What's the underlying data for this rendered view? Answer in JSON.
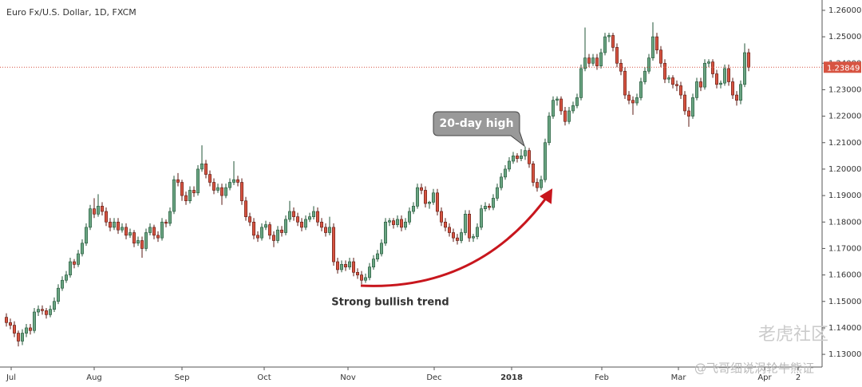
{
  "chart_data": {
    "type": "candlestick",
    "title": "Euro Fx/U.S. Dollar, 1D, FXCM",
    "up_color": "#6ba583",
    "down_color": "#d75442",
    "last_price": 1.23849,
    "last_price_color": "#d75442",
    "annotations": [
      "20-day high",
      "Strong bullish trend"
    ],
    "watermark": [
      "老虎社区",
      "@飞哥细说涡轮牛熊证"
    ],
    "xlim": [
      -1.6,
      204.4
    ],
    "xticks": [
      {
        "value": 1.2,
        "label": "Jul"
      },
      {
        "value": 22,
        "label": "Aug"
      },
      {
        "value": 44,
        "label": "Sep"
      },
      {
        "value": 64.6,
        "label": "Oct"
      },
      {
        "value": 85.6,
        "label": "Nov"
      },
      {
        "value": 107.2,
        "label": "Dec"
      },
      {
        "value": 126.6,
        "label": "2018"
      },
      {
        "value": 149.2,
        "label": "Feb"
      },
      {
        "value": 168.4,
        "label": "Mar"
      },
      {
        "value": 190,
        "label": "Apr"
      },
      {
        "value": 198.4,
        "label": "2"
      }
    ],
    "ylim": [
      1.1252,
      1.2639
    ],
    "yticks": [
      {
        "value": 1.26,
        "label": "1.26000"
      },
      {
        "value": 1.25,
        "label": "1.25000"
      },
      {
        "value": 1.24,
        "label": "1.24000"
      },
      {
        "value": 1.23,
        "label": "1.23000"
      },
      {
        "value": 1.22,
        "label": "1.22000"
      },
      {
        "value": 1.21,
        "label": "1.21000"
      },
      {
        "value": 1.2,
        "label": "1.20000"
      },
      {
        "value": 1.19,
        "label": "1.19000"
      },
      {
        "value": 1.18,
        "label": "1.18000"
      },
      {
        "value": 1.17,
        "label": "1.17000"
      },
      {
        "value": 1.16,
        "label": "1.16000"
      },
      {
        "value": 1.15,
        "label": "1.15000"
      },
      {
        "value": 1.14,
        "label": "1.14000"
      },
      {
        "value": 1.13,
        "label": "1.13000"
      }
    ],
    "ohlc": [
      [
        1.144,
        1.1455,
        1.1405,
        1.142
      ],
      [
        1.142,
        1.1435,
        1.1395,
        1.141
      ],
      [
        1.141,
        1.1425,
        1.1365,
        1.138
      ],
      [
        1.138,
        1.139,
        1.133,
        1.135
      ],
      [
        1.135,
        1.1395,
        1.1335,
        1.138
      ],
      [
        1.138,
        1.1415,
        1.1365,
        1.14
      ],
      [
        1.14,
        1.1415,
        1.1375,
        1.139
      ],
      [
        1.139,
        1.1475,
        1.138,
        1.146
      ],
      [
        1.146,
        1.1485,
        1.1445,
        1.147
      ],
      [
        1.147,
        1.1485,
        1.145,
        1.1465
      ],
      [
        1.1465,
        1.1475,
        1.1435,
        1.145
      ],
      [
        1.145,
        1.1485,
        1.144,
        1.147
      ],
      [
        1.147,
        1.1515,
        1.146,
        1.15
      ],
      [
        1.15,
        1.1565,
        1.149,
        1.155
      ],
      [
        1.155,
        1.1595,
        1.154,
        1.158
      ],
      [
        1.158,
        1.1615,
        1.157,
        1.16
      ],
      [
        1.16,
        1.1665,
        1.159,
        1.165
      ],
      [
        1.165,
        1.166,
        1.1625,
        1.164
      ],
      [
        1.164,
        1.1695,
        1.163,
        1.168
      ],
      [
        1.168,
        1.1735,
        1.167,
        1.172
      ],
      [
        1.172,
        1.1795,
        1.171,
        1.178
      ],
      [
        1.178,
        1.1865,
        1.177,
        1.185
      ],
      [
        1.185,
        1.189,
        1.1815,
        1.183
      ],
      [
        1.183,
        1.1905,
        1.182,
        1.186
      ],
      [
        1.186,
        1.1875,
        1.1825,
        1.184
      ],
      [
        1.184,
        1.1855,
        1.1785,
        1.18
      ],
      [
        1.18,
        1.1815,
        1.1765,
        1.178
      ],
      [
        1.178,
        1.1815,
        1.177,
        1.18
      ],
      [
        1.18,
        1.1815,
        1.1755,
        1.177
      ],
      [
        1.177,
        1.1795,
        1.176,
        1.178
      ],
      [
        1.178,
        1.1795,
        1.1735,
        1.175
      ],
      [
        1.175,
        1.1775,
        1.174,
        1.176
      ],
      [
        1.176,
        1.177,
        1.1705,
        1.172
      ],
      [
        1.172,
        1.1745,
        1.171,
        1.173
      ],
      [
        1.173,
        1.1745,
        1.1665,
        1.17
      ],
      [
        1.17,
        1.1775,
        1.169,
        1.176
      ],
      [
        1.176,
        1.1795,
        1.175,
        1.178
      ],
      [
        1.178,
        1.179,
        1.1735,
        1.175
      ],
      [
        1.175,
        1.1765,
        1.1725,
        1.174
      ],
      [
        1.174,
        1.1815,
        1.173,
        1.18
      ],
      [
        1.18,
        1.181,
        1.178,
        1.1795
      ],
      [
        1.1795,
        1.1855,
        1.1785,
        1.184
      ],
      [
        1.184,
        1.1975,
        1.183,
        1.196
      ],
      [
        1.196,
        1.1985,
        1.1935,
        1.195
      ],
      [
        1.195,
        1.196,
        1.188,
        1.19
      ],
      [
        1.19,
        1.1915,
        1.1865,
        1.188
      ],
      [
        1.188,
        1.1935,
        1.187,
        1.192
      ],
      [
        1.192,
        1.1935,
        1.1895,
        1.191
      ],
      [
        1.191,
        1.2015,
        1.19,
        1.2
      ],
      [
        1.2,
        1.209,
        1.199,
        1.202
      ],
      [
        1.202,
        1.2035,
        1.1965,
        1.198
      ],
      [
        1.198,
        1.1995,
        1.1935,
        1.195
      ],
      [
        1.195,
        1.1965,
        1.1905,
        1.192
      ],
      [
        1.192,
        1.1945,
        1.191,
        1.193
      ],
      [
        1.193,
        1.1945,
        1.1865,
        1.19
      ],
      [
        1.19,
        1.1945,
        1.189,
        1.193
      ],
      [
        1.193,
        1.1965,
        1.192,
        1.195
      ],
      [
        1.195,
        1.203,
        1.194,
        1.196
      ],
      [
        1.196,
        1.1975,
        1.1935,
        1.195
      ],
      [
        1.195,
        1.1965,
        1.1865,
        1.188
      ],
      [
        1.188,
        1.1895,
        1.1805,
        1.182
      ],
      [
        1.182,
        1.1835,
        1.1785,
        1.18
      ],
      [
        1.18,
        1.1815,
        1.1735,
        1.175
      ],
      [
        1.175,
        1.1765,
        1.1725,
        1.174
      ],
      [
        1.174,
        1.1795,
        1.173,
        1.178
      ],
      [
        1.178,
        1.1805,
        1.177,
        1.179
      ],
      [
        1.179,
        1.18,
        1.1735,
        1.175
      ],
      [
        1.175,
        1.1765,
        1.1705,
        1.173
      ],
      [
        1.173,
        1.1785,
        1.172,
        1.177
      ],
      [
        1.177,
        1.1785,
        1.1745,
        1.176
      ],
      [
        1.176,
        1.1825,
        1.175,
        1.181
      ],
      [
        1.181,
        1.188,
        1.18,
        1.184
      ],
      [
        1.184,
        1.1855,
        1.1805,
        1.182
      ],
      [
        1.182,
        1.1835,
        1.1785,
        1.18
      ],
      [
        1.18,
        1.1815,
        1.1765,
        1.178
      ],
      [
        1.178,
        1.1825,
        1.177,
        1.181
      ],
      [
        1.181,
        1.1835,
        1.18,
        1.182
      ],
      [
        1.182,
        1.186,
        1.181,
        1.184
      ],
      [
        1.184,
        1.1855,
        1.1785,
        1.18
      ],
      [
        1.18,
        1.1815,
        1.1765,
        1.178
      ],
      [
        1.178,
        1.1795,
        1.1745,
        1.176
      ],
      [
        1.176,
        1.182,
        1.175,
        1.178
      ],
      [
        1.178,
        1.1795,
        1.1635,
        1.165
      ],
      [
        1.165,
        1.1665,
        1.1605,
        1.162
      ],
      [
        1.162,
        1.1655,
        1.161,
        1.164
      ],
      [
        1.164,
        1.1655,
        1.1615,
        1.163
      ],
      [
        1.163,
        1.1665,
        1.162,
        1.165
      ],
      [
        1.165,
        1.1665,
        1.1595,
        1.161
      ],
      [
        1.161,
        1.1625,
        1.1585,
        1.16
      ],
      [
        1.16,
        1.1615,
        1.1565,
        1.158
      ],
      [
        1.158,
        1.1605,
        1.157,
        1.159
      ],
      [
        1.159,
        1.1645,
        1.158,
        1.163
      ],
      [
        1.163,
        1.1675,
        1.162,
        1.166
      ],
      [
        1.166,
        1.1695,
        1.165,
        1.168
      ],
      [
        1.168,
        1.1735,
        1.167,
        1.172
      ],
      [
        1.172,
        1.1815,
        1.171,
        1.18
      ],
      [
        1.18,
        1.1815,
        1.1785,
        1.1805
      ],
      [
        1.1805,
        1.1815,
        1.1775,
        1.179
      ],
      [
        1.179,
        1.1825,
        1.178,
        1.181
      ],
      [
        1.181,
        1.1825,
        1.1765,
        1.178
      ],
      [
        1.178,
        1.1815,
        1.177,
        1.18
      ],
      [
        1.18,
        1.1855,
        1.179,
        1.184
      ],
      [
        1.184,
        1.1875,
        1.183,
        1.186
      ],
      [
        1.186,
        1.1945,
        1.185,
        1.193
      ],
      [
        1.193,
        1.1945,
        1.1905,
        1.192
      ],
      [
        1.192,
        1.1935,
        1.1855,
        1.187
      ],
      [
        1.187,
        1.188,
        1.185,
        1.1875
      ],
      [
        1.1875,
        1.1925,
        1.1865,
        1.191
      ],
      [
        1.191,
        1.1925,
        1.1825,
        1.184
      ],
      [
        1.184,
        1.1855,
        1.1785,
        1.18
      ],
      [
        1.18,
        1.1815,
        1.1765,
        1.178
      ],
      [
        1.178,
        1.1795,
        1.1745,
        1.176
      ],
      [
        1.176,
        1.1775,
        1.1725,
        1.174
      ],
      [
        1.174,
        1.1755,
        1.1715,
        1.173
      ],
      [
        1.173,
        1.1775,
        1.172,
        1.176
      ],
      [
        1.176,
        1.1845,
        1.175,
        1.183
      ],
      [
        1.183,
        1.1845,
        1.1725,
        1.174
      ],
      [
        1.174,
        1.1755,
        1.1725,
        1.1745
      ],
      [
        1.1745,
        1.1795,
        1.1735,
        1.178
      ],
      [
        1.178,
        1.1865,
        1.177,
        1.185
      ],
      [
        1.185,
        1.1875,
        1.184,
        1.186
      ],
      [
        1.186,
        1.187,
        1.1845,
        1.1855
      ],
      [
        1.1855,
        1.1905,
        1.1845,
        1.189
      ],
      [
        1.189,
        1.1945,
        1.188,
        1.193
      ],
      [
        1.193,
        1.1985,
        1.192,
        1.197
      ],
      [
        1.197,
        1.2015,
        1.196,
        1.2
      ],
      [
        1.2,
        1.2045,
        1.199,
        1.203
      ],
      [
        1.203,
        1.2065,
        1.202,
        1.205
      ],
      [
        1.205,
        1.206,
        1.2025,
        1.204
      ],
      [
        1.204,
        1.2075,
        1.203,
        1.205
      ],
      [
        1.205,
        1.2085,
        1.2035,
        1.207
      ],
      [
        1.207,
        1.208,
        1.2005,
        1.202
      ],
      [
        1.202,
        1.203,
        1.1935,
        1.195
      ],
      [
        1.195,
        1.1965,
        1.1915,
        1.193
      ],
      [
        1.193,
        1.1975,
        1.192,
        1.196
      ],
      [
        1.196,
        1.2115,
        1.195,
        1.21
      ],
      [
        1.21,
        1.2215,
        1.209,
        1.22
      ],
      [
        1.22,
        1.2275,
        1.219,
        1.226
      ],
      [
        1.226,
        1.2275,
        1.224,
        1.2265
      ],
      [
        1.2265,
        1.2275,
        1.2205,
        1.222
      ],
      [
        1.222,
        1.2235,
        1.2165,
        1.218
      ],
      [
        1.218,
        1.2235,
        1.217,
        1.222
      ],
      [
        1.222,
        1.2255,
        1.221,
        1.224
      ],
      [
        1.224,
        1.2285,
        1.223,
        1.227
      ],
      [
        1.227,
        1.2395,
        1.226,
        1.238
      ],
      [
        1.238,
        1.2535,
        1.237,
        1.242
      ],
      [
        1.242,
        1.2435,
        1.2385,
        1.24
      ],
      [
        1.24,
        1.2435,
        1.239,
        1.242
      ],
      [
        1.242,
        1.2435,
        1.2375,
        1.239
      ],
      [
        1.239,
        1.2455,
        1.238,
        1.244
      ],
      [
        1.244,
        1.2515,
        1.243,
        1.25
      ],
      [
        1.25,
        1.2515,
        1.248,
        1.2505
      ],
      [
        1.2505,
        1.2515,
        1.2445,
        1.246
      ],
      [
        1.246,
        1.2475,
        1.2385,
        1.24
      ],
      [
        1.24,
        1.2415,
        1.2355,
        1.237
      ],
      [
        1.237,
        1.2385,
        1.2265,
        1.228
      ],
      [
        1.228,
        1.2295,
        1.2245,
        1.226
      ],
      [
        1.226,
        1.2275,
        1.2205,
        1.225
      ],
      [
        1.225,
        1.2285,
        1.224,
        1.227
      ],
      [
        1.227,
        1.2345,
        1.226,
        1.233
      ],
      [
        1.233,
        1.2385,
        1.232,
        1.237
      ],
      [
        1.237,
        1.2435,
        1.236,
        1.242
      ],
      [
        1.242,
        1.2555,
        1.241,
        1.25
      ],
      [
        1.25,
        1.2515,
        1.2435,
        1.245
      ],
      [
        1.245,
        1.2465,
        1.2385,
        1.24
      ],
      [
        1.24,
        1.2415,
        1.2325,
        1.234
      ],
      [
        1.234,
        1.2355,
        1.2325,
        1.2345
      ],
      [
        1.2345,
        1.2355,
        1.2305,
        1.232
      ],
      [
        1.232,
        1.2335,
        1.2295,
        1.2315
      ],
      [
        1.2315,
        1.233,
        1.2265,
        1.228
      ],
      [
        1.228,
        1.2295,
        1.2205,
        1.222
      ],
      [
        1.222,
        1.2235,
        1.216,
        1.22
      ],
      [
        1.22,
        1.2285,
        1.219,
        1.227
      ],
      [
        1.227,
        1.2345,
        1.226,
        1.233
      ],
      [
        1.233,
        1.2345,
        1.2295,
        1.231
      ],
      [
        1.231,
        1.2415,
        1.23,
        1.24
      ],
      [
        1.24,
        1.2415,
        1.2385,
        1.2405
      ],
      [
        1.2405,
        1.2415,
        1.2345,
        1.236
      ],
      [
        1.236,
        1.2375,
        1.2305,
        1.232
      ],
      [
        1.232,
        1.2335,
        1.2305,
        1.2325
      ],
      [
        1.2325,
        1.2395,
        1.2315,
        1.238
      ],
      [
        1.238,
        1.2395,
        1.2315,
        1.233
      ],
      [
        1.233,
        1.2345,
        1.2265,
        1.228
      ],
      [
        1.228,
        1.2295,
        1.224,
        1.226
      ],
      [
        1.226,
        1.2335,
        1.2245,
        1.232
      ],
      [
        1.232,
        1.2475,
        1.231,
        1.244
      ],
      [
        1.244,
        1.2455,
        1.237,
        1.2385
      ]
    ]
  }
}
